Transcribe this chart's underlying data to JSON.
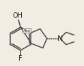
{
  "bg_color": "#f2ede3",
  "line_color": "#4a4a4a",
  "text_color": "#2a2a2a",
  "lw": 1.1,
  "oh_label": "OH",
  "n_label": "N",
  "f_label": "F",
  "abs_label": "Abs"
}
